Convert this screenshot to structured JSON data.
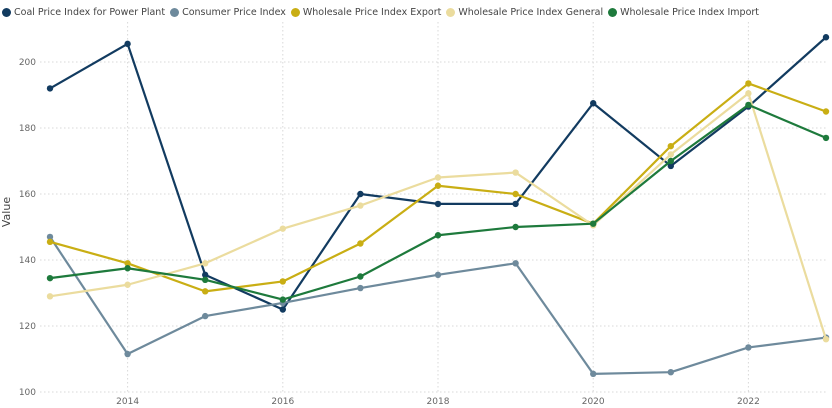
{
  "chart_data": {
    "type": "line",
    "title": "",
    "xlabel": "",
    "ylabel": "Value",
    "x": [
      2013,
      2014,
      2015,
      2016,
      2017,
      2018,
      2019,
      2020,
      2021,
      2022,
      2023
    ],
    "x_ticks": [
      2014,
      2016,
      2018,
      2020,
      2022
    ],
    "y_ticks": [
      100,
      120,
      140,
      160,
      180,
      200
    ],
    "xlim": [
      2013,
      2023
    ],
    "ylim": [
      100,
      210
    ],
    "grid": true,
    "legend_position": "top-left",
    "series": [
      {
        "name": "Coal Price Index for Power Plant",
        "color": "#123B60",
        "values": [
          192,
          205.5,
          135.5,
          125,
          160,
          157,
          157,
          187.5,
          168.5,
          186.5,
          207.5
        ]
      },
      {
        "name": "Consumer Price Index",
        "color": "#6E8A9C",
        "values": [
          147,
          111.5,
          123,
          127,
          131.5,
          135.5,
          139,
          105.5,
          106,
          113.5,
          116.5
        ]
      },
      {
        "name": "Wholesale Price Index Export",
        "color": "#C9AE14",
        "values": [
          145.5,
          139,
          130.5,
          133.5,
          145,
          162.5,
          160,
          151,
          174.5,
          193.5,
          185
        ]
      },
      {
        "name": "Wholesale Price Index General",
        "color": "#EBDC9E",
        "values": [
          129,
          132.5,
          139,
          149.5,
          156.5,
          165,
          166.5,
          150.5,
          172,
          190.5,
          116
        ]
      },
      {
        "name": "Wholesale Price Index Import",
        "color": "#1E7A3C",
        "values": [
          134.5,
          137.5,
          134,
          128,
          135,
          147.5,
          150,
          151,
          170,
          187,
          177
        ]
      }
    ]
  }
}
